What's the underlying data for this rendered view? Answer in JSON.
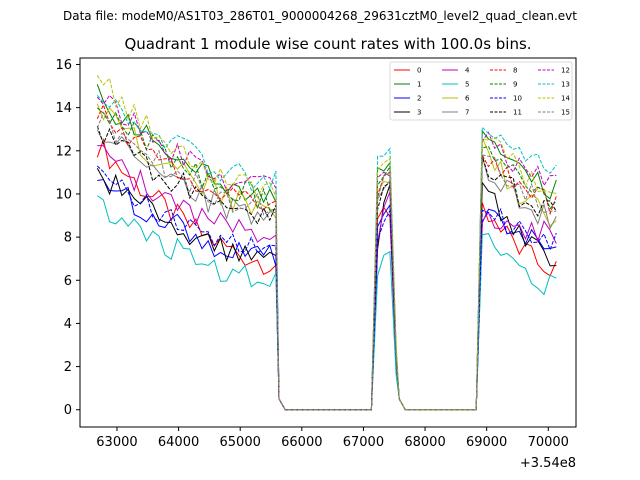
{
  "chart_data": {
    "type": "line",
    "suptitle": "Data file: modeM0/AS1T03_286T01_9000004268_29631cztM0_level2_quad_clean.evt",
    "title": "Quadrant 1 module wise count rates with 100.0s bins.",
    "xlabel": "",
    "ylabel": "",
    "offset_label": "+3.54e8",
    "xlim": [
      62400,
      70450
    ],
    "ylim": [
      -0.8,
      16.3
    ],
    "xticks": [
      63000,
      64000,
      65000,
      66000,
      67000,
      68000,
      69000,
      70000
    ],
    "xtick_labels": [
      "63000",
      "64000",
      "65000",
      "66000",
      "67000",
      "68000",
      "69000",
      "70000"
    ],
    "yticks": [
      0,
      2,
      4,
      6,
      8,
      10,
      12,
      14,
      16
    ],
    "ytick_labels": [
      "0",
      "2",
      "4",
      "6",
      "8",
      "10",
      "12",
      "14",
      "16"
    ],
    "legend_location": "top-right",
    "segments": [
      {
        "start": 62680,
        "end": 65580
      },
      {
        "start": 67230,
        "end": 67530
      },
      {
        "start": 68930,
        "end": 70130
      }
    ],
    "gaps": [
      {
        "start": 65580,
        "end": 67230
      },
      {
        "start": 67530,
        "end": 68930
      }
    ],
    "series": [
      {
        "name": "0",
        "color": "#ff0000",
        "dash": "solid",
        "seg_start": [
          12.3,
          9.0,
          9.5
        ],
        "seg_end": [
          6.8,
          9.2,
          6.5
        ]
      },
      {
        "name": "1",
        "color": "#008000",
        "dash": "solid",
        "seg_start": [
          14.5,
          11.0,
          12.5
        ],
        "seg_end": [
          10.0,
          11.5,
          10.3
        ]
      },
      {
        "name": "2",
        "color": "#0000ff",
        "dash": "solid",
        "seg_start": [
          10.8,
          8.5,
          9.2
        ],
        "seg_end": [
          7.0,
          9.5,
          7.5
        ]
      },
      {
        "name": "3",
        "color": "#000000",
        "dash": "solid",
        "seg_start": [
          11.0,
          7.6,
          10.5
        ],
        "seg_end": [
          7.0,
          10.5,
          7.2
        ]
      },
      {
        "name": "4",
        "color": "#bf00bf",
        "dash": "solid",
        "seg_start": [
          12.0,
          7.8,
          9.0
        ],
        "seg_end": [
          8.0,
          10.2,
          8.3
        ]
      },
      {
        "name": "5",
        "color": "#00bfbf",
        "dash": "solid",
        "seg_start": [
          9.5,
          6.4,
          8.0
        ],
        "seg_end": [
          6.0,
          7.5,
          5.7
        ]
      },
      {
        "name": "6",
        "color": "#bfbf00",
        "dash": "solid",
        "seg_start": [
          14.0,
          10.0,
          12.2
        ],
        "seg_end": [
          9.2,
          10.8,
          9.0
        ]
      },
      {
        "name": "7",
        "color": "#808080",
        "dash": "solid",
        "seg_start": [
          13.2,
          9.5,
          11.5
        ],
        "seg_end": [
          8.8,
          10.5,
          8.8
        ]
      },
      {
        "name": "8",
        "color": "#ff0000",
        "dash": "dashed",
        "seg_start": [
          13.8,
          10.0,
          12.0
        ],
        "seg_end": [
          9.5,
          11.0,
          9.5
        ]
      },
      {
        "name": "9",
        "color": "#008000",
        "dash": "dashed",
        "seg_start": [
          14.2,
          10.5,
          12.5
        ],
        "seg_end": [
          9.8,
          11.2,
          9.8
        ]
      },
      {
        "name": "10",
        "color": "#0000ff",
        "dash": "dashed",
        "seg_start": [
          11.0,
          8.0,
          9.5
        ],
        "seg_end": [
          7.5,
          9.5,
          7.8
        ]
      },
      {
        "name": "11",
        "color": "#000000",
        "dash": "dashed",
        "seg_start": [
          13.0,
          9.2,
          11.5
        ],
        "seg_end": [
          9.0,
          10.8,
          9.2
        ]
      },
      {
        "name": "12",
        "color": "#bf00bf",
        "dash": "dashed",
        "seg_start": [
          14.5,
          10.5,
          12.8
        ],
        "seg_end": [
          10.2,
          11.0,
          10.5
        ]
      },
      {
        "name": "13",
        "color": "#00bfbf",
        "dash": "dashed",
        "seg_start": [
          15.0,
          11.5,
          13.3
        ],
        "seg_end": [
          10.5,
          12.3,
          11.0
        ]
      },
      {
        "name": "14",
        "color": "#bfbf00",
        "dash": "dashed",
        "seg_start": [
          15.4,
          11.0,
          13.0
        ],
        "seg_end": [
          10.0,
          11.8,
          10.3
        ]
      },
      {
        "name": "15",
        "color": "#808080",
        "dash": "dashed",
        "seg_start": [
          13.5,
          10.0,
          12.0
        ],
        "seg_end": [
          9.3,
          11.0,
          9.5
        ]
      }
    ]
  }
}
